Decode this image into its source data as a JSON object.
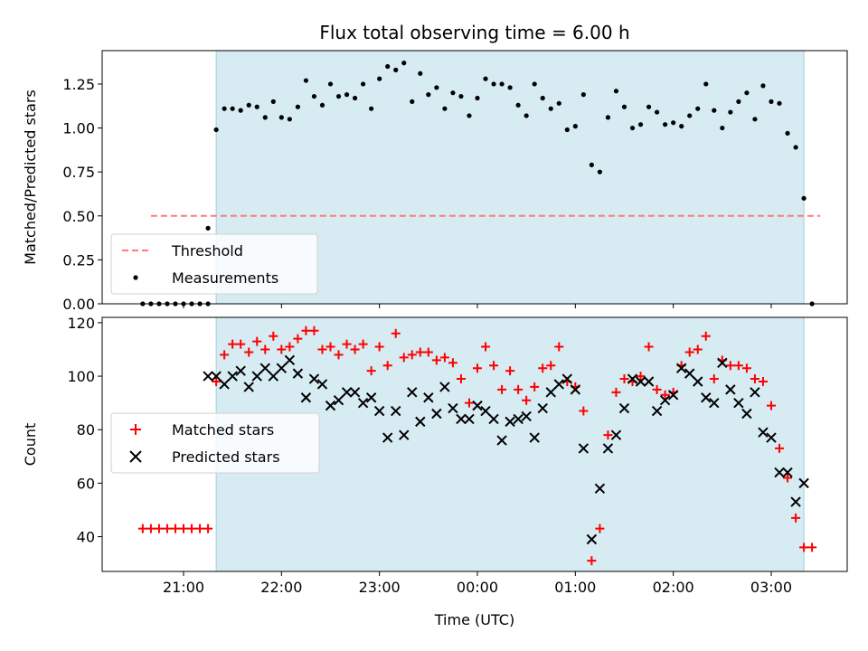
{
  "chart_data": [
    {
      "type": "scatter",
      "title": "Flux total observing time = 6.00 h",
      "ylabel": "Matched/Predicted stars",
      "xlabel": "",
      "ylim": [
        0,
        1.44
      ],
      "yticks": [
        "0.00",
        "0.25",
        "0.50",
        "0.75",
        "1.00",
        "1.25"
      ],
      "shaded_span": [
        "21:20",
        "03:20"
      ],
      "grid": false,
      "legend_position": "lower-left",
      "threshold": {
        "name": "Threshold",
        "value": 0.5,
        "x_start": "20:40",
        "x_end": "03:30",
        "color": "#ff7b7b"
      },
      "series": [
        {
          "name": "Measurements",
          "marker": "dot",
          "color": "#000000",
          "points": [
            [
              "20:35",
              0
            ],
            [
              "20:40",
              0
            ],
            [
              "20:45",
              0
            ],
            [
              "20:50",
              0
            ],
            [
              "20:55",
              0
            ],
            [
              "21:00",
              0
            ],
            [
              "21:05",
              0
            ],
            [
              "21:10",
              0
            ],
            [
              "21:15",
              0
            ],
            [
              "21:15",
              0.43
            ],
            [
              "21:20",
              0.99
            ],
            [
              "21:25",
              1.11
            ],
            [
              "21:30",
              1.11
            ],
            [
              "21:35",
              1.1
            ],
            [
              "21:40",
              1.13
            ],
            [
              "21:45",
              1.12
            ],
            [
              "21:50",
              1.06
            ],
            [
              "21:55",
              1.15
            ],
            [
              "22:00",
              1.06
            ],
            [
              "22:05",
              1.05
            ],
            [
              "22:10",
              1.12
            ],
            [
              "22:15",
              1.27
            ],
            [
              "22:20",
              1.18
            ],
            [
              "22:25",
              1.13
            ],
            [
              "22:30",
              1.25
            ],
            [
              "22:35",
              1.18
            ],
            [
              "22:40",
              1.19
            ],
            [
              "22:45",
              1.17
            ],
            [
              "22:50",
              1.25
            ],
            [
              "22:55",
              1.11
            ],
            [
              "23:00",
              1.28
            ],
            [
              "23:05",
              1.35
            ],
            [
              "23:10",
              1.33
            ],
            [
              "23:15",
              1.37
            ],
            [
              "23:20",
              1.15
            ],
            [
              "23:25",
              1.31
            ],
            [
              "23:30",
              1.19
            ],
            [
              "23:35",
              1.23
            ],
            [
              "23:40",
              1.11
            ],
            [
              "23:45",
              1.2
            ],
            [
              "23:50",
              1.18
            ],
            [
              "23:55",
              1.07
            ],
            [
              "00:00",
              1.17
            ],
            [
              "00:05",
              1.28
            ],
            [
              "00:10",
              1.25
            ],
            [
              "00:15",
              1.25
            ],
            [
              "00:20",
              1.23
            ],
            [
              "00:25",
              1.13
            ],
            [
              "00:30",
              1.07
            ],
            [
              "00:35",
              1.25
            ],
            [
              "00:40",
              1.17
            ],
            [
              "00:45",
              1.11
            ],
            [
              "00:50",
              1.14
            ],
            [
              "00:55",
              0.99
            ],
            [
              "01:00",
              1.01
            ],
            [
              "01:05",
              1.19
            ],
            [
              "01:10",
              0.79
            ],
            [
              "01:15",
              0.75
            ],
            [
              "01:20",
              1.06
            ],
            [
              "01:25",
              1.21
            ],
            [
              "01:30",
              1.12
            ],
            [
              "01:35",
              1.0
            ],
            [
              "01:40",
              1.02
            ],
            [
              "01:45",
              1.12
            ],
            [
              "01:50",
              1.09
            ],
            [
              "01:55",
              1.02
            ],
            [
              "02:00",
              1.03
            ],
            [
              "02:05",
              1.01
            ],
            [
              "02:10",
              1.07
            ],
            [
              "02:15",
              1.11
            ],
            [
              "02:20",
              1.25
            ],
            [
              "02:25",
              1.1
            ],
            [
              "02:30",
              1.0
            ],
            [
              "02:35",
              1.09
            ],
            [
              "02:40",
              1.15
            ],
            [
              "02:45",
              1.2
            ],
            [
              "02:50",
              1.05
            ],
            [
              "02:55",
              1.24
            ],
            [
              "03:00",
              1.15
            ],
            [
              "03:05",
              1.14
            ],
            [
              "03:10",
              0.97
            ],
            [
              "03:15",
              0.89
            ],
            [
              "03:20",
              0.6
            ],
            [
              "03:25",
              0
            ]
          ]
        }
      ]
    },
    {
      "type": "scatter",
      "title": "",
      "ylabel": "Count",
      "xlabel": "Time (UTC)",
      "ylim": [
        27,
        122
      ],
      "yticks": [
        "40",
        "60",
        "80",
        "100",
        "120"
      ],
      "xticks": [
        "21:00",
        "22:00",
        "23:00",
        "00:00",
        "01:00",
        "02:00",
        "03:00"
      ],
      "shaded_span": [
        "21:20",
        "03:20"
      ],
      "grid": false,
      "legend_position": "center-left",
      "series": [
        {
          "name": "Matched stars",
          "marker": "plus",
          "color": "#ff0000",
          "points": [
            [
              "20:35",
              43
            ],
            [
              "20:40",
              43
            ],
            [
              "20:45",
              43
            ],
            [
              "20:50",
              43
            ],
            [
              "20:55",
              43
            ],
            [
              "21:00",
              43
            ],
            [
              "21:05",
              43
            ],
            [
              "21:10",
              43
            ],
            [
              "21:15",
              43
            ],
            [
              "21:20",
              98
            ],
            [
              "21:25",
              108
            ],
            [
              "21:30",
              112
            ],
            [
              "21:35",
              112
            ],
            [
              "21:40",
              109
            ],
            [
              "21:45",
              113
            ],
            [
              "21:50",
              110
            ],
            [
              "21:55",
              115
            ],
            [
              "22:00",
              110
            ],
            [
              "22:05",
              111
            ],
            [
              "22:10",
              114
            ],
            [
              "22:15",
              117
            ],
            [
              "22:20",
              117
            ],
            [
              "22:25",
              110
            ],
            [
              "22:30",
              111
            ],
            [
              "22:35",
              108
            ],
            [
              "22:40",
              112
            ],
            [
              "22:45",
              110
            ],
            [
              "22:50",
              112
            ],
            [
              "22:55",
              102
            ],
            [
              "23:00",
              111
            ],
            [
              "23:05",
              104
            ],
            [
              "23:10",
              116
            ],
            [
              "23:15",
              107
            ],
            [
              "23:20",
              108
            ],
            [
              "23:25",
              109
            ],
            [
              "23:30",
              109
            ],
            [
              "23:35",
              106
            ],
            [
              "23:40",
              107
            ],
            [
              "23:45",
              105
            ],
            [
              "23:50",
              99
            ],
            [
              "23:55",
              90
            ],
            [
              "00:00",
              103
            ],
            [
              "00:05",
              111
            ],
            [
              "00:10",
              104
            ],
            [
              "00:15",
              95
            ],
            [
              "00:20",
              102
            ],
            [
              "00:25",
              95
            ],
            [
              "00:30",
              91
            ],
            [
              "00:35",
              96
            ],
            [
              "00:40",
              103
            ],
            [
              "00:45",
              104
            ],
            [
              "00:50",
              111
            ],
            [
              "00:55",
              98
            ],
            [
              "01:00",
              96
            ],
            [
              "01:05",
              87
            ],
            [
              "01:10",
              31
            ],
            [
              "01:15",
              43
            ],
            [
              "01:20",
              78
            ],
            [
              "01:25",
              94
            ],
            [
              "01:30",
              99
            ],
            [
              "01:35",
              98
            ],
            [
              "01:40",
              100
            ],
            [
              "01:45",
              111
            ],
            [
              "01:50",
              95
            ],
            [
              "01:55",
              93
            ],
            [
              "02:00",
              94
            ],
            [
              "02:05",
              104
            ],
            [
              "02:10",
              109
            ],
            [
              "02:15",
              110
            ],
            [
              "02:20",
              115
            ],
            [
              "02:25",
              99
            ],
            [
              "02:30",
              106
            ],
            [
              "02:35",
              104
            ],
            [
              "02:40",
              104
            ],
            [
              "02:45",
              103
            ],
            [
              "02:50",
              99
            ],
            [
              "02:55",
              98
            ],
            [
              "03:00",
              89
            ],
            [
              "03:05",
              73
            ],
            [
              "03:10",
              62
            ],
            [
              "03:15",
              47
            ],
            [
              "03:20",
              36
            ],
            [
              "03:25",
              36
            ]
          ]
        },
        {
          "name": "Predicted stars",
          "marker": "x",
          "color": "#000000",
          "points": [
            [
              "21:15",
              100
            ],
            [
              "21:20",
              100
            ],
            [
              "21:25",
              97
            ],
            [
              "21:30",
              100
            ],
            [
              "21:35",
              102
            ],
            [
              "21:40",
              96
            ],
            [
              "21:45",
              100
            ],
            [
              "21:50",
              103
            ],
            [
              "21:55",
              100
            ],
            [
              "22:00",
              103
            ],
            [
              "22:05",
              106
            ],
            [
              "22:10",
              101
            ],
            [
              "22:15",
              92
            ],
            [
              "22:20",
              99
            ],
            [
              "22:25",
              97
            ],
            [
              "22:30",
              89
            ],
            [
              "22:35",
              91
            ],
            [
              "22:40",
              94
            ],
            [
              "22:45",
              94
            ],
            [
              "22:50",
              90
            ],
            [
              "22:55",
              92
            ],
            [
              "23:00",
              87
            ],
            [
              "23:05",
              77
            ],
            [
              "23:10",
              87
            ],
            [
              "23:15",
              78
            ],
            [
              "23:20",
              94
            ],
            [
              "23:25",
              83
            ],
            [
              "23:30",
              92
            ],
            [
              "23:35",
              86
            ],
            [
              "23:40",
              96
            ],
            [
              "23:45",
              88
            ],
            [
              "23:50",
              84
            ],
            [
              "23:55",
              84
            ],
            [
              "00:00",
              89
            ],
            [
              "00:05",
              87
            ],
            [
              "00:10",
              84
            ],
            [
              "00:15",
              76
            ],
            [
              "00:20",
              83
            ],
            [
              "00:25",
              84
            ],
            [
              "00:30",
              85
            ],
            [
              "00:35",
              77
            ],
            [
              "00:40",
              88
            ],
            [
              "00:45",
              94
            ],
            [
              "00:50",
              97
            ],
            [
              "00:55",
              99
            ],
            [
              "01:00",
              95
            ],
            [
              "01:05",
              73
            ],
            [
              "01:10",
              39
            ],
            [
              "01:15",
              58
            ],
            [
              "01:20",
              73
            ],
            [
              "01:25",
              78
            ],
            [
              "01:30",
              88
            ],
            [
              "01:35",
              99
            ],
            [
              "01:40",
              98
            ],
            [
              "01:45",
              98
            ],
            [
              "01:50",
              87
            ],
            [
              "01:55",
              91
            ],
            [
              "02:00",
              93
            ],
            [
              "02:05",
              103
            ],
            [
              "02:10",
              101
            ],
            [
              "02:15",
              98
            ],
            [
              "02:20",
              92
            ],
            [
              "02:25",
              90
            ],
            [
              "02:30",
              105
            ],
            [
              "02:35",
              95
            ],
            [
              "02:40",
              90
            ],
            [
              "02:45",
              86
            ],
            [
              "02:50",
              94
            ],
            [
              "02:55",
              79
            ],
            [
              "03:00",
              77
            ],
            [
              "03:05",
              64
            ],
            [
              "03:10",
              64
            ],
            [
              "03:15",
              53
            ],
            [
              "03:20",
              60
            ]
          ]
        }
      ]
    }
  ]
}
